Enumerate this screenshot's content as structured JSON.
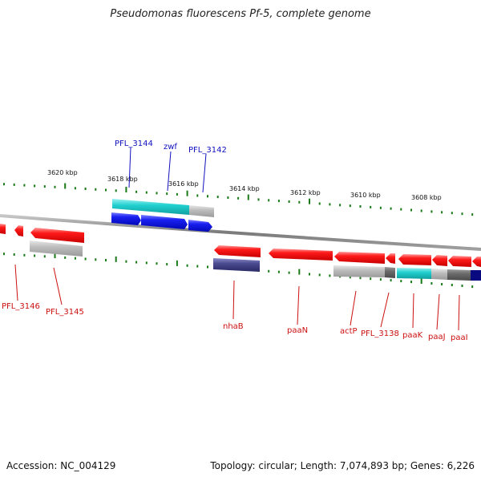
{
  "title": "Pseudomonas fluorescens Pf-5, complete genome",
  "footer": {
    "accession": "Accession: NC_004129",
    "info": "Topology: circular; Length: 7,074,893 bp; Genes: 6,226"
  },
  "scale_labels": [
    "3620 kbp",
    "3618 kbp",
    "3616 kbp",
    "3614 kbp",
    "3612 kbp",
    "3610 kbp",
    "3608 kbp"
  ],
  "colors": {
    "forward_gene": "#0a14e0",
    "reverse_gene": "#ee1111",
    "forward_label": "#1010c0",
    "reverse_label": "#cc1010",
    "backbone": "#8c8c8c",
    "ticks": "#1a7a1a",
    "cyan_annotation": "#21c8c8",
    "grey_annotation": "#b8b8b8",
    "navy_annotation": "#4a4a8a"
  },
  "forward_gene_labels": [
    "PFL_3144",
    "zwf",
    "PFL_3142"
  ],
  "reverse_gene_labels": [
    "PFL_3146",
    "PFL_3145",
    "nhaB",
    "paaN",
    "actP",
    "PFL_3138",
    "paaK",
    "paaJ",
    "paaI"
  ]
}
